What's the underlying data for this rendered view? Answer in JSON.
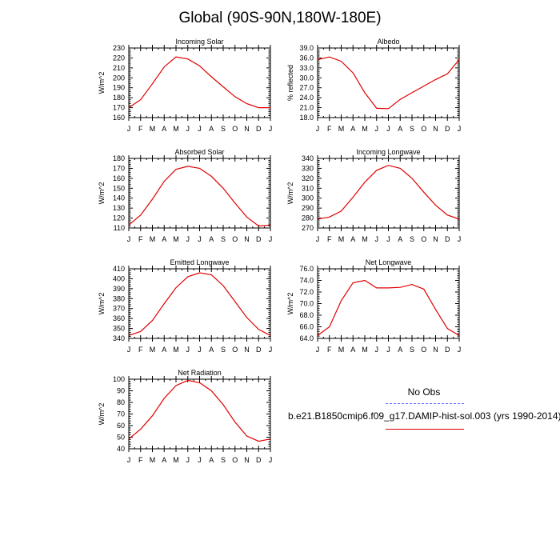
{
  "title": "Global (90S-90N,180W-180E)",
  "legend": {
    "obs_label": "No Obs",
    "model_label": "b.e21.B1850cmip6.f09_g17.DAMIP-hist-sol.003 (yrs 1990-2014)",
    "obs_color": "#6666ff",
    "model_color": "#e00000"
  },
  "chart_data": [
    {
      "type": "line",
      "title": "Incoming Solar",
      "ylabel": "W/m^2",
      "x": [
        "J",
        "F",
        "M",
        "A",
        "M",
        "J",
        "J",
        "A",
        "S",
        "O",
        "N",
        "D",
        "J"
      ],
      "ylim": [
        160,
        230
      ],
      "yticks": [
        160,
        170,
        180,
        190,
        200,
        210,
        220,
        230
      ],
      "ytick_labels": [
        "160",
        "170",
        "180",
        "190",
        "200",
        "210",
        "220",
        "230"
      ],
      "series": [
        {
          "values": [
            170,
            178,
            194,
            211,
            221,
            219,
            212,
            201,
            191,
            181,
            174,
            170,
            170
          ]
        }
      ]
    },
    {
      "type": "line",
      "title": "Albedo",
      "ylabel": "% reflected",
      "x": [
        "J",
        "F",
        "M",
        "A",
        "M",
        "J",
        "J",
        "A",
        "S",
        "O",
        "N",
        "D",
        "J"
      ],
      "ylim": [
        18,
        39
      ],
      "yticks": [
        18,
        21,
        24,
        27,
        30,
        33,
        36,
        39
      ],
      "ytick_labels": [
        "18.0",
        "21.0",
        "24.0",
        "27.0",
        "30.0",
        "33.0",
        "36.0",
        "39.0"
      ],
      "series": [
        {
          "values": [
            35.5,
            36.3,
            35,
            31.5,
            25.5,
            20.8,
            20.7,
            23.5,
            25.5,
            27.5,
            29.5,
            31.2,
            35.5
          ]
        }
      ]
    },
    {
      "type": "line",
      "title": "Absorbed Solar",
      "ylabel": "W/m^2",
      "x": [
        "J",
        "F",
        "M",
        "A",
        "M",
        "J",
        "J",
        "A",
        "S",
        "O",
        "N",
        "D",
        "J"
      ],
      "ylim": [
        110,
        180
      ],
      "yticks": [
        110,
        120,
        130,
        140,
        150,
        160,
        170,
        180
      ],
      "ytick_labels": [
        "110",
        "120",
        "130",
        "140",
        "150",
        "160",
        "170",
        "180"
      ],
      "series": [
        {
          "values": [
            113,
            123,
            139,
            157,
            169,
            172,
            170,
            162,
            150,
            135,
            121,
            112,
            113
          ]
        }
      ]
    },
    {
      "type": "line",
      "title": "Incoming Longwave",
      "ylabel": "W/m^2",
      "x": [
        "J",
        "F",
        "M",
        "A",
        "M",
        "J",
        "J",
        "A",
        "S",
        "O",
        "N",
        "D",
        "J"
      ],
      "ylim": [
        270,
        340
      ],
      "yticks": [
        270,
        280,
        290,
        300,
        310,
        320,
        330,
        340
      ],
      "ytick_labels": [
        "270",
        "280",
        "290",
        "300",
        "310",
        "320",
        "330",
        "340"
      ],
      "series": [
        {
          "values": [
            279,
            281,
            287,
            301,
            316,
            328,
            333,
            330,
            320,
            306,
            293,
            283,
            279
          ]
        }
      ]
    },
    {
      "type": "line",
      "title": "Emitted Longwave",
      "ylabel": "W/m^2",
      "x": [
        "J",
        "F",
        "M",
        "A",
        "M",
        "J",
        "J",
        "A",
        "S",
        "O",
        "N",
        "D",
        "J"
      ],
      "ylim": [
        340,
        410
      ],
      "yticks": [
        340,
        350,
        360,
        370,
        380,
        390,
        400,
        410
      ],
      "ytick_labels": [
        "340",
        "350",
        "360",
        "370",
        "380",
        "390",
        "400",
        "410"
      ],
      "series": [
        {
          "values": [
            343,
            347,
            358,
            375,
            391,
            402,
            406,
            404,
            393,
            377,
            361,
            349,
            343
          ]
        }
      ]
    },
    {
      "type": "line",
      "title": "Net Longwave",
      "ylabel": "W/m^2",
      "x": [
        "J",
        "F",
        "M",
        "A",
        "M",
        "J",
        "J",
        "A",
        "S",
        "O",
        "N",
        "D",
        "J"
      ],
      "ylim": [
        64,
        76
      ],
      "yticks": [
        64,
        66,
        68,
        70,
        72,
        74,
        76
      ],
      "ytick_labels": [
        "64.0",
        "66.0",
        "68.0",
        "70.0",
        "72.0",
        "74.0",
        "76.0"
      ],
      "series": [
        {
          "values": [
            64.5,
            66,
            70.5,
            73.6,
            74,
            72.7,
            72.7,
            72.8,
            73.3,
            72.5,
            69,
            65.7,
            64.5
          ]
        }
      ]
    },
    {
      "type": "line",
      "title": "Net Radiation",
      "ylabel": "W/m^2",
      "x": [
        "J",
        "F",
        "M",
        "A",
        "M",
        "J",
        "J",
        "A",
        "S",
        "O",
        "N",
        "D",
        "J"
      ],
      "ylim": [
        40,
        100
      ],
      "yticks": [
        40,
        50,
        60,
        70,
        80,
        90,
        100
      ],
      "ytick_labels": [
        "40",
        "50",
        "60",
        "70",
        "80",
        "90",
        "100"
      ],
      "series": [
        {
          "values": [
            48.5,
            57,
            68.5,
            83.5,
            94.5,
            99,
            97,
            90,
            78,
            63,
            51,
            46.5,
            48.5
          ]
        }
      ]
    }
  ]
}
